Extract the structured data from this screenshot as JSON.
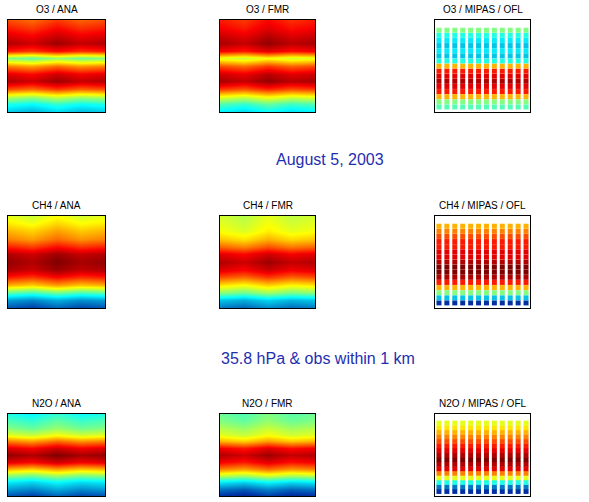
{
  "title": "August 5, 2003",
  "subtitle": "35.8 hPa & obs within 1 km",
  "chart_data": [
    {
      "type": "heatmap",
      "title": "O3 / ANA",
      "xlim": [
        -180,
        180
      ],
      "ylim": [
        -90,
        90
      ],
      "zlim": [
        0,
        1
      ],
      "tick_labels": false,
      "grid": false,
      "x": [
        -180,
        -90,
        0,
        90,
        180
      ],
      "y": [
        -90,
        -75,
        -60,
        -45,
        -30,
        -15,
        0,
        15,
        30,
        45,
        60,
        75,
        90
      ],
      "z": [
        [
          0.3,
          0.27,
          0.32,
          0.28,
          0.3
        ],
        [
          0.4,
          0.37,
          0.42,
          0.38,
          0.4
        ],
        [
          0.55,
          0.52,
          0.57,
          0.53,
          0.55
        ],
        [
          0.8,
          0.77,
          0.82,
          0.78,
          0.8
        ],
        [
          0.95,
          0.92,
          0.97,
          0.93,
          0.95
        ],
        [
          0.9,
          0.87,
          0.92,
          0.88,
          0.9
        ],
        [
          0.75,
          0.72,
          0.77,
          0.73,
          0.75
        ],
        [
          0.5,
          0.47,
          0.52,
          0.48,
          0.5
        ],
        [
          0.85,
          0.82,
          0.87,
          0.83,
          0.85
        ],
        [
          0.95,
          0.92,
          0.97,
          0.93,
          0.95
        ],
        [
          0.9,
          0.87,
          0.92,
          0.88,
          0.9
        ],
        [
          0.85,
          0.82,
          0.87,
          0.83,
          0.85
        ],
        [
          0.8,
          0.77,
          0.82,
          0.78,
          0.8
        ]
      ]
    },
    {
      "type": "heatmap",
      "title": "O3 / FMR",
      "xlim": [
        -180,
        180
      ],
      "ylim": [
        -90,
        90
      ],
      "zlim": [
        0,
        1
      ],
      "tick_labels": false,
      "grid": false,
      "x": [
        -180,
        -90,
        0,
        90,
        180
      ],
      "y": [
        -90,
        -75,
        -60,
        -45,
        -30,
        -15,
        0,
        15,
        30,
        45,
        60,
        75,
        90
      ],
      "z": [
        [
          0.35,
          0.32,
          0.37,
          0.33,
          0.35
        ],
        [
          0.45,
          0.42,
          0.47,
          0.43,
          0.45
        ],
        [
          0.6,
          0.57,
          0.62,
          0.58,
          0.6
        ],
        [
          0.82,
          0.79,
          0.84,
          0.8,
          0.82
        ],
        [
          0.96,
          0.93,
          0.98,
          0.94,
          0.96
        ],
        [
          0.92,
          0.89,
          0.94,
          0.9,
          0.92
        ],
        [
          0.8,
          0.77,
          0.82,
          0.78,
          0.8
        ],
        [
          0.6,
          0.57,
          0.62,
          0.58,
          0.6
        ],
        [
          0.88,
          0.85,
          0.9,
          0.86,
          0.88
        ],
        [
          0.96,
          0.93,
          0.98,
          0.94,
          0.96
        ],
        [
          0.92,
          0.89,
          0.94,
          0.9,
          0.92
        ],
        [
          0.88,
          0.85,
          0.9,
          0.86,
          0.88
        ],
        [
          0.85,
          0.82,
          0.87,
          0.83,
          0.85
        ]
      ]
    },
    {
      "type": "scatter",
      "title": "O3 / MIPAS / OFL",
      "marker": "square",
      "xlim": [
        -180,
        180
      ],
      "ylim": [
        -90,
        90
      ],
      "zlim": [
        0,
        1
      ],
      "tick_labels": false,
      "grid": false,
      "tracks": [
        -165,
        -135,
        -105,
        -75,
        -45,
        -15,
        15,
        45,
        75,
        105,
        135,
        165
      ],
      "lat": [
        -80,
        -70,
        -60,
        -50,
        -40,
        -30,
        -20,
        -10,
        0,
        10,
        20,
        30,
        40,
        50,
        60,
        70
      ],
      "values": [
        0.45,
        0.5,
        0.7,
        0.85,
        0.9,
        0.95,
        0.9,
        0.85,
        0.7,
        0.4,
        0.3,
        0.35,
        0.3,
        0.35,
        0.4,
        0.5
      ]
    },
    {
      "type": "heatmap",
      "title": "CH4 / ANA",
      "xlim": [
        -180,
        180
      ],
      "ylim": [
        -90,
        90
      ],
      "zlim": [
        0,
        1
      ],
      "tick_labels": false,
      "grid": false,
      "x": [
        -180,
        -90,
        0,
        90,
        180
      ],
      "y": [
        -90,
        -75,
        -60,
        -45,
        -30,
        -15,
        0,
        15,
        30,
        45,
        60,
        75,
        90
      ],
      "z": [
        [
          0.15,
          0.12,
          0.17,
          0.13,
          0.15
        ],
        [
          0.25,
          0.22,
          0.27,
          0.23,
          0.25
        ],
        [
          0.45,
          0.42,
          0.47,
          0.43,
          0.45
        ],
        [
          0.7,
          0.67,
          0.72,
          0.68,
          0.7
        ],
        [
          0.85,
          0.82,
          0.87,
          0.83,
          0.85
        ],
        [
          0.95,
          0.92,
          0.97,
          0.93,
          0.95
        ],
        [
          0.98,
          0.95,
          1.0,
          0.96,
          0.98
        ],
        [
          0.95,
          0.92,
          0.97,
          0.93,
          0.95
        ],
        [
          0.85,
          0.82,
          0.87,
          0.83,
          0.85
        ],
        [
          0.75,
          0.72,
          0.77,
          0.73,
          0.75
        ],
        [
          0.7,
          0.67,
          0.72,
          0.68,
          0.7
        ],
        [
          0.65,
          0.62,
          0.67,
          0.63,
          0.65
        ],
        [
          0.6,
          0.57,
          0.62,
          0.58,
          0.6
        ]
      ]
    },
    {
      "type": "heatmap",
      "title": "CH4 / FMR",
      "xlim": [
        -180,
        180
      ],
      "ylim": [
        -90,
        90
      ],
      "zlim": [
        0,
        1
      ],
      "tick_labels": false,
      "grid": false,
      "x": [
        -180,
        -90,
        0,
        90,
        180
      ],
      "y": [
        -90,
        -75,
        -60,
        -45,
        -30,
        -15,
        0,
        15,
        30,
        45,
        60,
        75,
        90
      ],
      "z": [
        [
          0.2,
          0.17,
          0.22,
          0.18,
          0.2
        ],
        [
          0.3,
          0.27,
          0.32,
          0.28,
          0.3
        ],
        [
          0.5,
          0.47,
          0.52,
          0.48,
          0.5
        ],
        [
          0.65,
          0.62,
          0.67,
          0.63,
          0.65
        ],
        [
          0.8,
          0.77,
          0.82,
          0.78,
          0.8
        ],
        [
          0.9,
          0.87,
          0.92,
          0.88,
          0.9
        ],
        [
          0.95,
          0.92,
          0.97,
          0.93,
          0.95
        ],
        [
          0.9,
          0.87,
          0.92,
          0.88,
          0.9
        ],
        [
          0.78,
          0.75,
          0.8,
          0.76,
          0.78
        ],
        [
          0.68,
          0.65,
          0.7,
          0.66,
          0.68
        ],
        [
          0.62,
          0.59,
          0.64,
          0.6,
          0.62
        ],
        [
          0.6,
          0.57,
          0.62,
          0.58,
          0.6
        ],
        [
          0.58,
          0.55,
          0.6,
          0.56,
          0.58
        ]
      ]
    },
    {
      "type": "scatter",
      "title": "CH4 / MIPAS / OFL",
      "marker": "square",
      "xlim": [
        -180,
        180
      ],
      "ylim": [
        -90,
        90
      ],
      "zlim": [
        0,
        1
      ],
      "tick_labels": false,
      "grid": false,
      "tracks": [
        -165,
        -135,
        -105,
        -75,
        -45,
        -15,
        15,
        45,
        75,
        105,
        135,
        165
      ],
      "lat": [
        -80,
        -70,
        -60,
        -50,
        -40,
        -30,
        -20,
        -10,
        0,
        10,
        20,
        30,
        40,
        50,
        60,
        70
      ],
      "values": [
        0.1,
        0.3,
        0.5,
        0.7,
        0.85,
        0.95,
        1.0,
        1.0,
        0.95,
        0.9,
        0.9,
        0.85,
        0.85,
        0.8,
        0.75,
        0.7
      ]
    },
    {
      "type": "heatmap",
      "title": "N2O / ANA",
      "xlim": [
        -180,
        180
      ],
      "ylim": [
        -90,
        90
      ],
      "zlim": [
        0,
        1
      ],
      "tick_labels": false,
      "grid": false,
      "x": [
        -180,
        -90,
        0,
        90,
        180
      ],
      "y": [
        -90,
        -75,
        -60,
        -45,
        -30,
        -15,
        0,
        15,
        30,
        45,
        60,
        75,
        90
      ],
      "z": [
        [
          0.15,
          0.12,
          0.17,
          0.13,
          0.15
        ],
        [
          0.25,
          0.22,
          0.27,
          0.23,
          0.25
        ],
        [
          0.35,
          0.32,
          0.37,
          0.33,
          0.35
        ],
        [
          0.5,
          0.47,
          0.52,
          0.48,
          0.5
        ],
        [
          0.7,
          0.67,
          0.72,
          0.68,
          0.7
        ],
        [
          0.9,
          0.87,
          0.92,
          0.88,
          0.9
        ],
        [
          0.98,
          0.95,
          1.0,
          0.96,
          0.98
        ],
        [
          0.9,
          0.87,
          0.92,
          0.88,
          0.9
        ],
        [
          0.75,
          0.72,
          0.77,
          0.73,
          0.75
        ],
        [
          0.6,
          0.57,
          0.62,
          0.58,
          0.6
        ],
        [
          0.5,
          0.47,
          0.52,
          0.48,
          0.5
        ],
        [
          0.45,
          0.42,
          0.47,
          0.43,
          0.45
        ],
        [
          0.4,
          0.37,
          0.42,
          0.38,
          0.4
        ]
      ]
    },
    {
      "type": "heatmap",
      "title": "N2O / FMR",
      "xlim": [
        -180,
        180
      ],
      "ylim": [
        -90,
        90
      ],
      "zlim": [
        0,
        1
      ],
      "tick_labels": false,
      "grid": false,
      "x": [
        -180,
        -90,
        0,
        90,
        180
      ],
      "y": [
        -90,
        -75,
        -60,
        -45,
        -30,
        -15,
        0,
        15,
        30,
        45,
        60,
        75,
        90
      ],
      "z": [
        [
          0.1,
          0.07,
          0.12,
          0.08,
          0.1
        ],
        [
          0.2,
          0.17,
          0.22,
          0.18,
          0.2
        ],
        [
          0.35,
          0.32,
          0.37,
          0.33,
          0.35
        ],
        [
          0.55,
          0.52,
          0.57,
          0.53,
          0.55
        ],
        [
          0.75,
          0.72,
          0.77,
          0.73,
          0.75
        ],
        [
          0.88,
          0.85,
          0.9,
          0.86,
          0.88
        ],
        [
          0.95,
          0.92,
          0.97,
          0.93,
          0.95
        ],
        [
          0.88,
          0.85,
          0.9,
          0.86,
          0.88
        ],
        [
          0.7,
          0.67,
          0.72,
          0.68,
          0.7
        ],
        [
          0.6,
          0.57,
          0.62,
          0.58,
          0.6
        ],
        [
          0.55,
          0.52,
          0.57,
          0.53,
          0.55
        ],
        [
          0.5,
          0.47,
          0.52,
          0.48,
          0.5
        ],
        [
          0.48,
          0.45,
          0.5,
          0.46,
          0.48
        ]
      ]
    },
    {
      "type": "scatter",
      "title": "N2O / MIPAS / OFL",
      "marker": "square",
      "xlim": [
        -180,
        180
      ],
      "ylim": [
        -90,
        90
      ],
      "zlim": [
        0,
        1
      ],
      "tick_labels": false,
      "grid": false,
      "tracks": [
        -165,
        -135,
        -105,
        -75,
        -45,
        -15,
        15,
        45,
        75,
        105,
        135,
        165
      ],
      "lat": [
        -80,
        -70,
        -60,
        -50,
        -40,
        -30,
        -20,
        -10,
        0,
        10,
        20,
        30,
        40,
        50,
        60,
        70
      ],
      "values": [
        0.1,
        0.2,
        0.4,
        0.6,
        0.75,
        0.9,
        0.95,
        1.0,
        0.95,
        0.9,
        0.85,
        0.8,
        0.75,
        0.7,
        0.65,
        0.6
      ]
    }
  ]
}
